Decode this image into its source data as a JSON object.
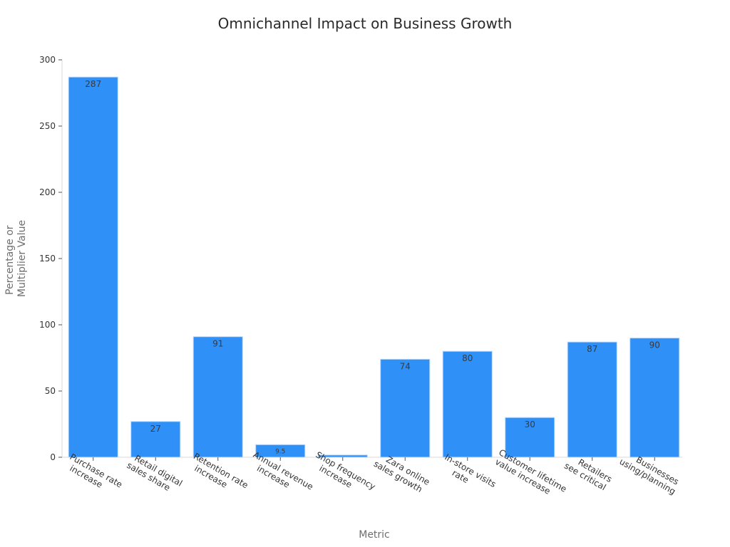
{
  "chart_data": {
    "type": "bar",
    "title": "Omnichannel Impact on Business Growth",
    "xlabel": "Metric",
    "ylabel_lines": [
      "Percentage or",
      "Multiplier Value"
    ],
    "categories": [
      [
        "Purchase rate",
        "increase"
      ],
      [
        "Retail digital",
        "sales share"
      ],
      [
        "Retention rate",
        "increase"
      ],
      [
        "Annual revenue",
        "increase"
      ],
      [
        "Shop frequency",
        "increase"
      ],
      [
        "Zara online",
        "sales growth"
      ],
      [
        "In-store visits",
        "rate"
      ],
      [
        "Customer lifetime",
        "value increase"
      ],
      [
        "Retailers",
        "see critical"
      ],
      [
        "Businesses",
        "using/planning"
      ]
    ],
    "values": [
      287,
      27,
      91,
      9.5,
      1.7,
      74,
      80,
      30,
      87,
      90
    ],
    "data_labels": [
      "287",
      "27",
      "91",
      "9.5",
      "",
      "74",
      "80",
      "30",
      "87",
      "90"
    ],
    "ylim": [
      0,
      300
    ],
    "yticks": [
      0,
      50,
      100,
      150,
      200,
      250,
      300
    ],
    "bar_color": "#2f91f7",
    "grid": false,
    "legend": "none"
  }
}
